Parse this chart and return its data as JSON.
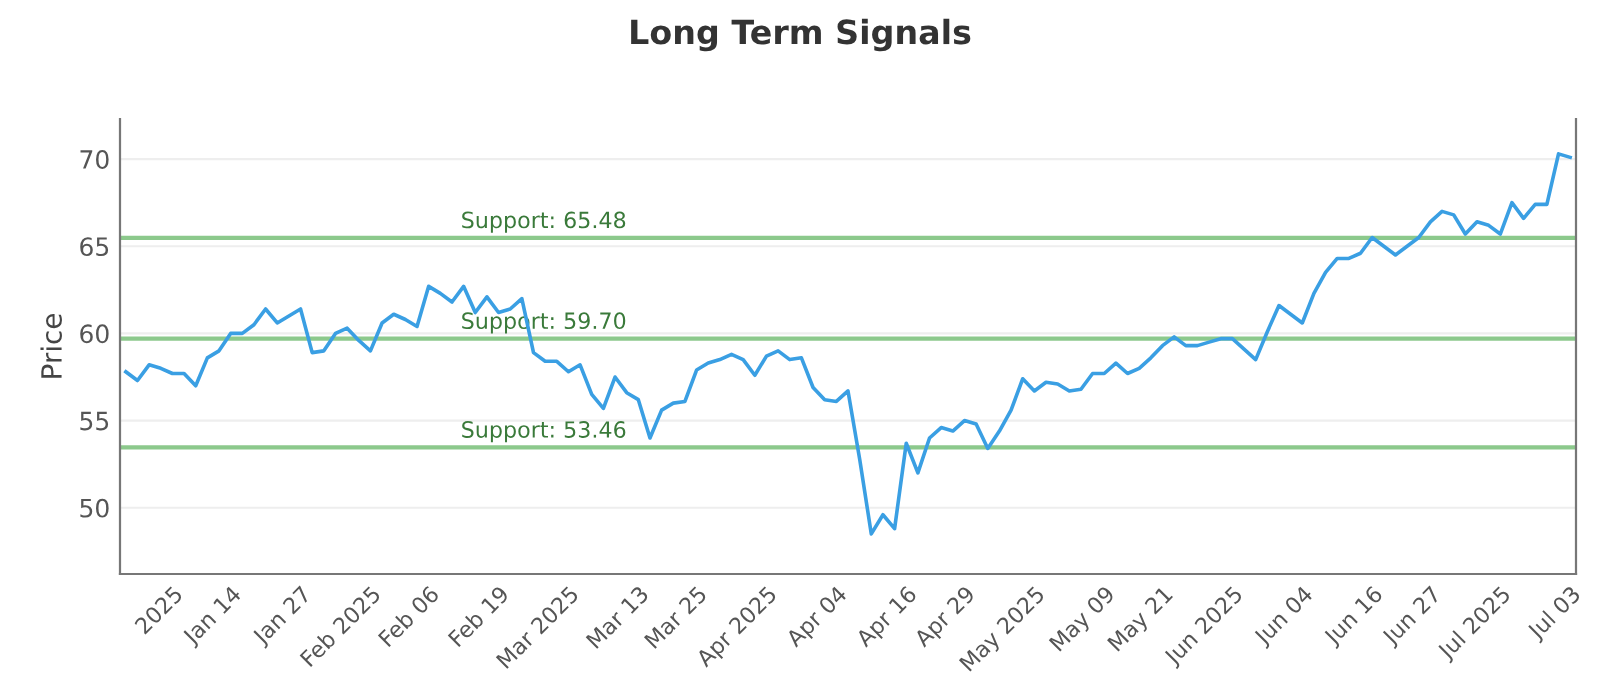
{
  "chart_data": {
    "type": "line",
    "title": "Long Term Signals",
    "ylabel": "Price",
    "categories": [
      null,
      null,
      null,
      null,
      "2025",
      null,
      null,
      null,
      null,
      "Jan 14",
      null,
      null,
      null,
      null,
      null,
      "Jan 27",
      null,
      null,
      null,
      null,
      null,
      "Feb 2025",
      null,
      null,
      null,
      null,
      "Feb 06",
      null,
      null,
      null,
      null,
      null,
      "Feb 19",
      null,
      null,
      null,
      null,
      null,
      "Mar 2025",
      null,
      null,
      null,
      null,
      null,
      "Mar 13",
      null,
      null,
      null,
      null,
      "Mar 25",
      null,
      null,
      null,
      null,
      null,
      "Apr 2025",
      null,
      null,
      null,
      null,
      null,
      "Apr 04",
      null,
      null,
      null,
      null,
      null,
      "Apr 16",
      null,
      null,
      null,
      null,
      "Apr 29",
      null,
      null,
      null,
      null,
      null,
      "May 2025",
      null,
      null,
      null,
      null,
      null,
      "May 09",
      null,
      null,
      null,
      null,
      "May 21",
      null,
      null,
      null,
      null,
      null,
      "Jun 2025",
      null,
      null,
      null,
      null,
      null,
      "Jun 04",
      null,
      null,
      null,
      null,
      null,
      "Jun 16",
      null,
      null,
      null,
      null,
      "Jun 27",
      null,
      null,
      null,
      null,
      null,
      "Jul 2025",
      null,
      null,
      null,
      null,
      null,
      "Jul 03"
    ],
    "series": [
      {
        "color": "#3a9fe3",
        "values": [
          57.8,
          57.3,
          58.2,
          58.0,
          57.7,
          57.7,
          57.0,
          58.6,
          59.0,
          60.0,
          60.0,
          60.5,
          61.4,
          60.6,
          61.0,
          61.4,
          58.9,
          59.0,
          60.0,
          60.3,
          59.6,
          59.0,
          60.6,
          61.1,
          60.8,
          60.4,
          62.7,
          62.3,
          61.8,
          62.7,
          61.2,
          62.1,
          61.2,
          61.4,
          62.0,
          58.9,
          58.4,
          58.4,
          57.8,
          58.2,
          56.5,
          55.7,
          57.5,
          56.6,
          56.2,
          54.0,
          55.6,
          56.0,
          56.1,
          57.9,
          58.3,
          58.5,
          58.8,
          58.5,
          57.6,
          58.7,
          59.0,
          58.5,
          58.6,
          56.9,
          56.2,
          56.1,
          56.7,
          52.8,
          48.5,
          49.6,
          48.8,
          53.7,
          52.0,
          54.0,
          54.6,
          54.4,
          55.0,
          54.8,
          53.4,
          54.4,
          55.6,
          57.4,
          56.7,
          57.2,
          57.1,
          56.7,
          56.8,
          57.7,
          57.7,
          58.3,
          57.7,
          58.0,
          58.6,
          59.3,
          59.8,
          59.3,
          59.3,
          59.5,
          59.7,
          59.7,
          59.1,
          58.5,
          60.1,
          61.6,
          61.1,
          60.6,
          62.3,
          63.5,
          64.3,
          64.3,
          64.6,
          65.5,
          65.0,
          64.5,
          65.0,
          65.5,
          66.4,
          67.0,
          66.8,
          65.7,
          66.4,
          66.2,
          65.7,
          67.5,
          66.6,
          67.4,
          67.4,
          70.3,
          70.1
        ]
      }
    ],
    "ylim": [
      46.2,
      72.3
    ],
    "yticks": [
      50,
      55,
      60,
      65,
      70
    ],
    "grid": "y",
    "ref_lines": [
      {
        "axis": "y",
        "value": 65.48,
        "label": "Support: 65.48",
        "color": "#8cc98c"
      },
      {
        "axis": "y",
        "value": 59.7,
        "label": "Support: 59.70",
        "color": "#8cc98c"
      },
      {
        "axis": "y",
        "value": 53.46,
        "label": "Support: 53.46",
        "color": "#8cc98c"
      }
    ]
  }
}
